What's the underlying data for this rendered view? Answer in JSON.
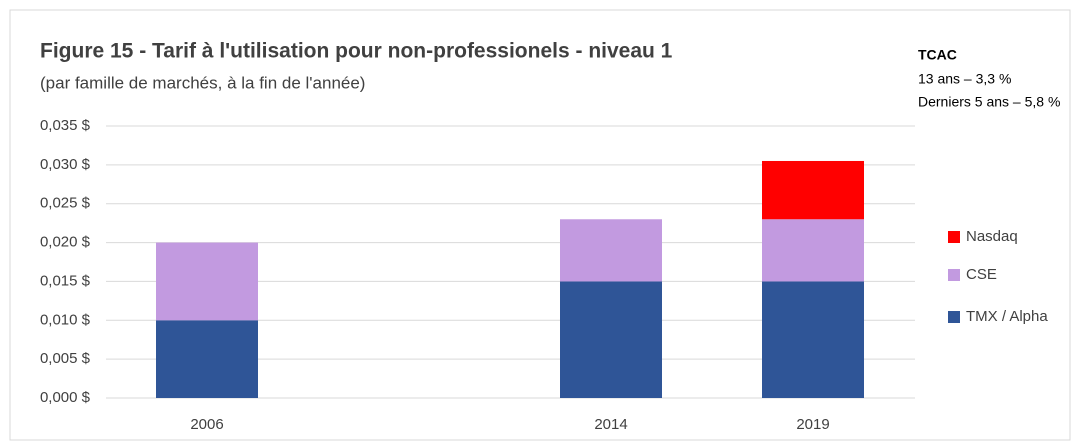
{
  "chart_data": {
    "type": "stacked_bar",
    "title": "Figure 15 - Tarif à l'utilisation pour non-professionels - niveau 1",
    "subtitle": "(par famille de marchés, à la fin de l'année)",
    "annotations": [
      "TCAC",
      "13 ans – 3,3 %",
      "Derniers 5 ans – 5,8 %"
    ],
    "categories": [
      "2006",
      null,
      "2014",
      "2019"
    ],
    "series": [
      {
        "name": "TMX / Alpha",
        "color": "#2f5597",
        "values": [
          0.01,
          null,
          0.015,
          0.015
        ]
      },
      {
        "name": "CSE",
        "color": "#c29ae0",
        "values": [
          0.01,
          null,
          0.008,
          0.008
        ]
      },
      {
        "name": "Nasdaq",
        "color": "#ff0000",
        "values": [
          null,
          null,
          null,
          0.0075
        ]
      }
    ],
    "ylim": [
      0,
      0.035
    ],
    "yticks": [
      {
        "value": 0,
        "label": "0,000 $"
      },
      {
        "value": 0.005,
        "label": "0,005 $"
      },
      {
        "value": 0.01,
        "label": "0,010 $"
      },
      {
        "value": 0.015,
        "label": "0,015 $"
      },
      {
        "value": 0.02,
        "label": "0,020 $"
      },
      {
        "value": 0.025,
        "label": "0,025 $"
      },
      {
        "value": 0.03,
        "label": "0,030 $"
      },
      {
        "value": 0.035,
        "label": "0,035 $"
      }
    ],
    "grid": true,
    "legend": "right"
  }
}
